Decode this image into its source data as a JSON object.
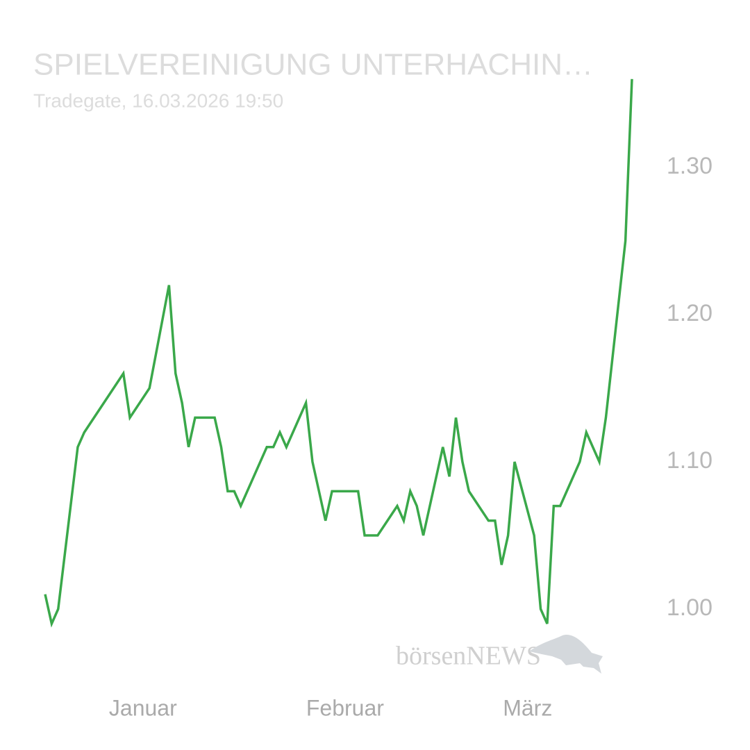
{
  "chart_data": {
    "type": "line",
    "title": "SPIELVEREINIGUNG UNTERHACHIN…",
    "subtitle": "Tradegate, 16.03.2026 19:50",
    "watermark": "börsenNEWS",
    "x": [
      0,
      1,
      2,
      5,
      6,
      12,
      13,
      16,
      19,
      20,
      21,
      22,
      23,
      26,
      27,
      28,
      29,
      30,
      34,
      35,
      36,
      37,
      40,
      41,
      43,
      44,
      48,
      49,
      51,
      54,
      55,
      56,
      57,
      58,
      61,
      62,
      63,
      64,
      65,
      68,
      69,
      70,
      71,
      72,
      75,
      76,
      77,
      78,
      79,
      82,
      83,
      85,
      86,
      89,
      90
    ],
    "series": [
      {
        "color": "#3aa84a",
        "values": [
          1.01,
          0.99,
          1.0,
          1.11,
          1.12,
          1.16,
          1.13,
          1.15,
          1.22,
          1.16,
          1.14,
          1.11,
          1.13,
          1.13,
          1.11,
          1.08,
          1.08,
          1.07,
          1.11,
          1.11,
          1.12,
          1.11,
          1.14,
          1.1,
          1.06,
          1.08,
          1.08,
          1.05,
          1.05,
          1.07,
          1.06,
          1.08,
          1.07,
          1.05,
          1.11,
          1.09,
          1.13,
          1.1,
          1.08,
          1.06,
          1.06,
          1.03,
          1.05,
          1.1,
          1.05,
          1.0,
          0.99,
          1.07,
          1.07,
          1.1,
          1.12,
          1.1,
          1.13,
          1.25,
          1.36
        ]
      }
    ],
    "xlim": [
      0,
      90
    ],
    "xticks": [
      {
        "value": 15,
        "label": "Januar"
      },
      {
        "value": 46,
        "label": "Februar"
      },
      {
        "value": 74,
        "label": "März"
      }
    ],
    "ylim": [
      0.96,
      1.38
    ],
    "yticks": [
      {
        "value": 1,
        "label": "1.00"
      },
      {
        "value": 1.1,
        "label": "1.10"
      },
      {
        "value": 1.2,
        "label": "1.20"
      },
      {
        "value": 1.3,
        "label": "1.30"
      }
    ],
    "grid": false
  }
}
